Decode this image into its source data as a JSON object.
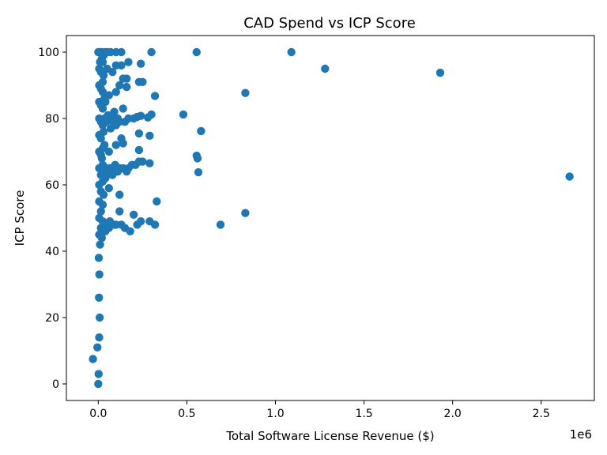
{
  "chart_data": {
    "type": "scatter",
    "title": "CAD Spend vs ICP Score",
    "xlabel": "Total Software License Revenue ($)",
    "ylabel": "ICP Score",
    "x_offset_label": "1e6",
    "xlim": [
      -180000,
      2800000
    ],
    "ylim": [
      -5,
      105
    ],
    "xticks": [
      {
        "value": 0,
        "label": "0.0"
      },
      {
        "value": 500000,
        "label": "0.5"
      },
      {
        "value": 1000000,
        "label": "1.0"
      },
      {
        "value": 1500000,
        "label": "1.5"
      },
      {
        "value": 2000000,
        "label": "2.0"
      },
      {
        "value": 2500000,
        "label": "2.5"
      }
    ],
    "yticks": [
      {
        "value": 0,
        "label": "0"
      },
      {
        "value": 20,
        "label": "20"
      },
      {
        "value": 40,
        "label": "40"
      },
      {
        "value": 60,
        "label": "60"
      },
      {
        "value": 80,
        "label": "80"
      },
      {
        "value": 100,
        "label": "100"
      }
    ],
    "grid": false,
    "marker_color": "#1f77b4",
    "series": [
      {
        "points": [
          [
            -30000,
            7.5
          ],
          [
            -5000,
            11
          ],
          [
            5000,
            14
          ],
          [
            2000,
            3
          ],
          [
            0,
            0
          ],
          [
            8000,
            20
          ],
          [
            4000,
            26
          ],
          [
            6000,
            33
          ],
          [
            3000,
            38
          ],
          [
            10000,
            42
          ],
          [
            20000,
            44
          ],
          [
            40000,
            46
          ],
          [
            60000,
            47
          ],
          [
            80000,
            48
          ],
          [
            100000,
            48
          ],
          [
            130000,
            48
          ],
          [
            150000,
            47
          ],
          [
            180000,
            46
          ],
          [
            220000,
            48
          ],
          [
            240000,
            49
          ],
          [
            290000,
            49
          ],
          [
            320000,
            48
          ],
          [
            200000,
            51
          ],
          [
            120000,
            52
          ],
          [
            330000,
            55
          ],
          [
            30000,
            57
          ],
          [
            120000,
            57
          ],
          [
            60000,
            59
          ],
          [
            40000,
            62
          ],
          [
            80000,
            63
          ],
          [
            100000,
            64
          ],
          [
            120000,
            65
          ],
          [
            140000,
            65
          ],
          [
            160000,
            64
          ],
          [
            170000,
            65
          ],
          [
            190000,
            66
          ],
          [
            210000,
            66
          ],
          [
            230000,
            67
          ],
          [
            250000,
            67
          ],
          [
            290000,
            66.5
          ],
          [
            20000,
            68
          ],
          [
            60000,
            70
          ],
          [
            100000,
            72
          ],
          [
            140000,
            72.5
          ],
          [
            130000,
            74
          ],
          [
            230000,
            70.5
          ],
          [
            230000,
            75.5
          ],
          [
            290000,
            74.8
          ],
          [
            30000,
            76
          ],
          [
            70000,
            77
          ],
          [
            100000,
            78
          ],
          [
            120000,
            79
          ],
          [
            150000,
            79
          ],
          [
            170000,
            80
          ],
          [
            200000,
            80
          ],
          [
            220000,
            80.5
          ],
          [
            240000,
            80.8
          ],
          [
            280000,
            80.3
          ],
          [
            300000,
            81.2
          ],
          [
            90000,
            82
          ],
          [
            140000,
            83
          ],
          [
            320000,
            86.8
          ],
          [
            40000,
            85
          ],
          [
            60000,
            87
          ],
          [
            100000,
            88
          ],
          [
            120000,
            90
          ],
          [
            160000,
            89.5
          ],
          [
            230000,
            91
          ],
          [
            250000,
            91
          ],
          [
            140000,
            92
          ],
          [
            160000,
            92
          ],
          [
            30000,
            93
          ],
          [
            80000,
            94
          ],
          [
            50000,
            95
          ],
          [
            100000,
            96
          ],
          [
            130000,
            96
          ],
          [
            170000,
            97
          ],
          [
            240000,
            96.5
          ],
          [
            10000,
            97
          ],
          [
            20000,
            98
          ],
          [
            30000,
            99
          ],
          [
            0,
            100
          ],
          [
            10000,
            100
          ],
          [
            20000,
            100
          ],
          [
            40000,
            100
          ],
          [
            50000,
            100
          ],
          [
            70000,
            100
          ],
          [
            100000,
            100
          ],
          [
            130000,
            100
          ],
          [
            300000,
            100
          ],
          [
            480000,
            81.2
          ],
          [
            555000,
            68.8
          ],
          [
            560000,
            68
          ],
          [
            565000,
            63.8
          ],
          [
            580000,
            76.2
          ],
          [
            555000,
            100
          ],
          [
            690000,
            48
          ],
          [
            830000,
            51.5
          ],
          [
            830000,
            87.7
          ],
          [
            1090000,
            100
          ],
          [
            1280000,
            95
          ],
          [
            1930000,
            93.8
          ],
          [
            2660000,
            62.5
          ],
          [
            5000,
            45
          ],
          [
            5000,
            50
          ],
          [
            5000,
            55
          ],
          [
            5000,
            60
          ],
          [
            5000,
            65
          ],
          [
            5000,
            70
          ],
          [
            5000,
            75
          ],
          [
            5000,
            80
          ],
          [
            5000,
            85
          ],
          [
            5000,
            90
          ],
          [
            5000,
            95
          ],
          [
            15000,
            47
          ],
          [
            15000,
            52
          ],
          [
            15000,
            58
          ],
          [
            15000,
            63
          ],
          [
            15000,
            69
          ],
          [
            15000,
            74
          ],
          [
            15000,
            79
          ],
          [
            15000,
            84
          ],
          [
            15000,
            89
          ],
          [
            15000,
            94
          ],
          [
            25000,
            49
          ],
          [
            25000,
            54
          ],
          [
            25000,
            61
          ],
          [
            25000,
            66
          ],
          [
            25000,
            71
          ],
          [
            25000,
            78
          ],
          [
            25000,
            83
          ],
          [
            25000,
            88
          ],
          [
            25000,
            91
          ],
          [
            25000,
            97
          ],
          [
            35000,
            48
          ],
          [
            35000,
            64
          ],
          [
            35000,
            72
          ],
          [
            35000,
            80
          ],
          [
            35000,
            86
          ],
          [
            45000,
            65
          ],
          [
            45000,
            79
          ],
          [
            55000,
            48
          ],
          [
            55000,
            64
          ],
          [
            55000,
            81
          ],
          [
            65000,
            49
          ],
          [
            65000,
            65
          ],
          [
            75000,
            64
          ],
          [
            75000,
            80
          ],
          [
            85000,
            65
          ],
          [
            85000,
            79
          ],
          [
            95000,
            48
          ],
          [
            95000,
            66
          ],
          [
            110000,
            80
          ],
          [
            110000,
            64
          ]
        ]
      }
    ]
  }
}
